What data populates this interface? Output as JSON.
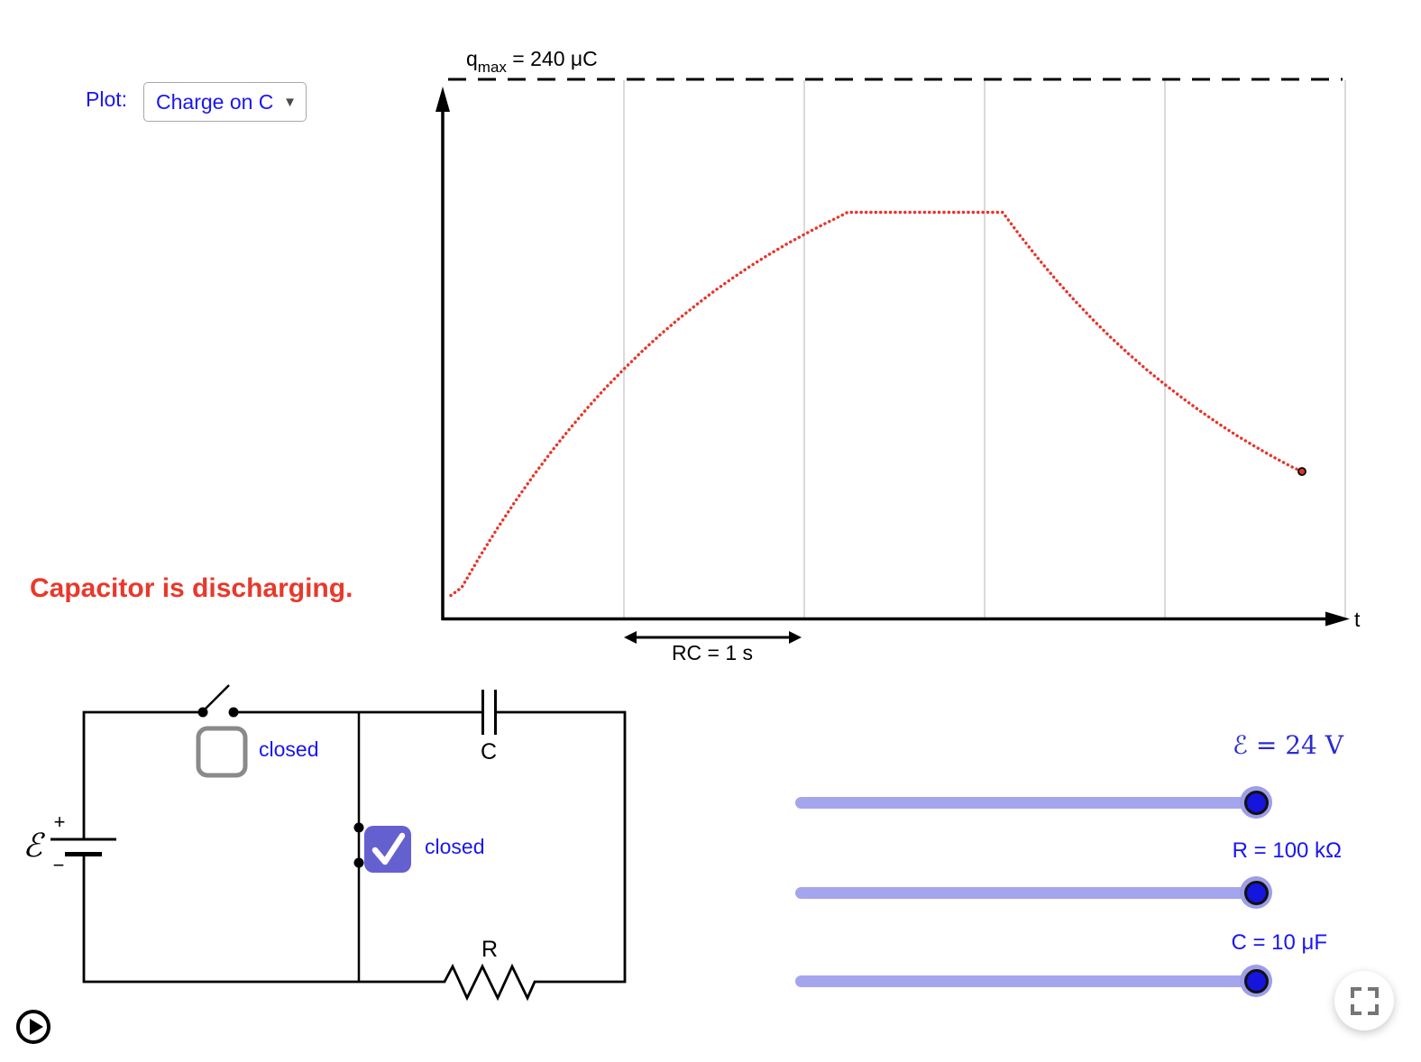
{
  "plot_control": {
    "label": "Plot:",
    "value": "Charge on C",
    "dropdown_arrow_icon": "▼"
  },
  "chart_data": {
    "type": "line",
    "style": "dotted",
    "series": [
      {
        "name": "charge on capacitor",
        "color": "#e8352a",
        "x_unit": "s",
        "y_unit": "μC",
        "points": [
          [
            0.04,
            11
          ],
          [
            0.1,
            14.5
          ],
          [
            0.2,
            28.2
          ],
          [
            0.3,
            41.0
          ],
          [
            0.4,
            53.1
          ],
          [
            0.5,
            64.4
          ],
          [
            0.6,
            75.1
          ],
          [
            0.7,
            85.0
          ],
          [
            0.8,
            94.4
          ],
          [
            0.9,
            103.3
          ],
          [
            1.0,
            111.5
          ],
          [
            1.1,
            119.3
          ],
          [
            1.2,
            126.6
          ],
          [
            1.3,
            133.5
          ],
          [
            1.4,
            139.9
          ],
          [
            1.5,
            146.0
          ],
          [
            1.6,
            151.7
          ],
          [
            1.7,
            157.1
          ],
          [
            1.8,
            162.1
          ],
          [
            1.9,
            166.8
          ],
          [
            2.0,
            171.2
          ],
          [
            2.1,
            175.4
          ],
          [
            2.2,
            179.3
          ],
          [
            2.24,
            181
          ],
          [
            2.3,
            181
          ],
          [
            2.4,
            181
          ],
          [
            2.5,
            181
          ],
          [
            2.6,
            181
          ],
          [
            2.7,
            181
          ],
          [
            2.8,
            181
          ],
          [
            2.9,
            181
          ],
          [
            3.0,
            181
          ],
          [
            3.1,
            181
          ],
          [
            3.2,
            170.3
          ],
          [
            3.3,
            160.2
          ],
          [
            3.4,
            150.7
          ],
          [
            3.5,
            141.8
          ],
          [
            3.6,
            133.4
          ],
          [
            3.7,
            125.5
          ],
          [
            3.8,
            118.1
          ],
          [
            3.9,
            111.1
          ],
          [
            4.0,
            104.6
          ],
          [
            4.1,
            98.4
          ],
          [
            4.2,
            92.6
          ],
          [
            4.3,
            87.1
          ],
          [
            4.4,
            81.9
          ],
          [
            4.5,
            77.1
          ],
          [
            4.6,
            72.5
          ],
          [
            4.7,
            68.2
          ],
          [
            4.76,
            66
          ]
        ]
      }
    ],
    "end_marker": {
      "t": 4.76,
      "q": 66
    },
    "asymptote": {
      "label_base": "q",
      "label_sub": "max",
      "label_rest": " = 240 μC",
      "q": 240,
      "style": "dashed"
    },
    "x_axis": {
      "label": "t",
      "gridlines_t": [
        1,
        2,
        3,
        4,
        5
      ],
      "scale_label": "RC = 1 s",
      "scale_span_t": [
        1,
        2
      ]
    },
    "y_axis": {
      "range_uC": [
        0,
        240
      ]
    },
    "grid_color": "#cdcdcd"
  },
  "status": {
    "text": "Capacitor is discharging.",
    "color": "#e8392c"
  },
  "circuit": {
    "emf_symbol": "ℰ",
    "battery_plus": "+",
    "battery_minus": "−",
    "switch_battery": {
      "label": "closed",
      "checked": false
    },
    "switch_shunt": {
      "label": "closed",
      "checked": true
    },
    "capacitor_label": "C",
    "resistor_label": "R"
  },
  "sliders": [
    {
      "id": "emf",
      "label": "ℰ = 24 V"
    },
    {
      "id": "resistance",
      "label": "R = 100 kΩ"
    },
    {
      "id": "capacitance",
      "label": "C = 10 μF"
    }
  ],
  "controls": {
    "play_icon": "play-triangle",
    "fullscreen_icon": "fullscreen-corners"
  },
  "colors": {
    "accent_blue": "#1a16f0",
    "math_blue": "#2b2bd0",
    "curve_red": "#e8352a",
    "status_red": "#e8392c",
    "checkbox_purple": "#6560cf",
    "slider_track": "#a5a5ed",
    "slider_handle": "#1515dd"
  }
}
